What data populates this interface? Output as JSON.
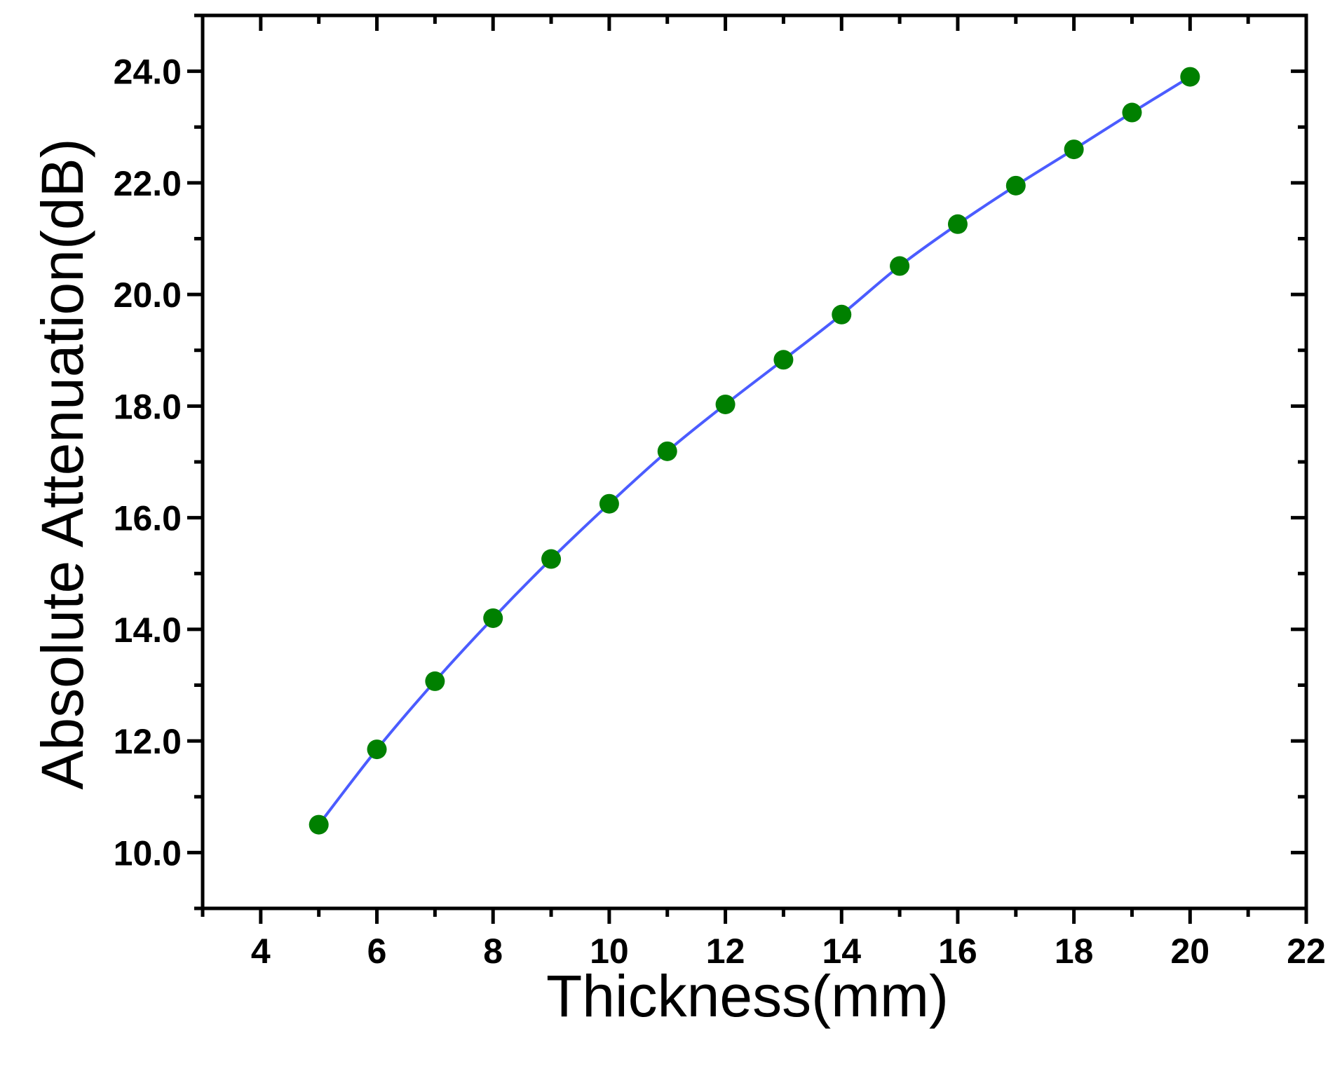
{
  "chart_data": {
    "type": "line",
    "title": "",
    "xlabel": "Thickness(mm)",
    "ylabel": "Absolute Attenuation(dB)",
    "xlim": [
      3,
      22
    ],
    "ylim": [
      9.0,
      25.0
    ],
    "x_ticks": [
      4,
      6,
      8,
      10,
      12,
      14,
      16,
      18,
      20,
      22
    ],
    "x_tick_labels": [
      "4",
      "6",
      "8",
      "10",
      "12",
      "14",
      "16",
      "18",
      "20",
      "22"
    ],
    "y_ticks": [
      10,
      12,
      14,
      16,
      18,
      20,
      22,
      24
    ],
    "y_tick_labels": [
      "10.0",
      "12.0",
      "14.0",
      "16.0",
      "18.0",
      "20.0",
      "22.0",
      "24.0"
    ],
    "x_minor_ticks": [
      3,
      5,
      7,
      9,
      11,
      13,
      15,
      17,
      19,
      21
    ],
    "y_minor_ticks": [
      9,
      11,
      13,
      15,
      17,
      19,
      21,
      23,
      25
    ],
    "grid": false,
    "legend": "none",
    "series": [
      {
        "x": [
          5,
          6,
          7,
          8,
          9,
          10,
          11,
          12,
          13,
          14,
          15,
          16,
          17,
          18,
          19,
          20
        ],
        "y": [
          10.5,
          11.85,
          13.07,
          14.2,
          15.26,
          16.25,
          17.19,
          18.03,
          18.83,
          19.64,
          20.51,
          21.26,
          21.95,
          22.6,
          23.26,
          23.9
        ],
        "marker_color": "#008000",
        "line_color": "#4b5cff"
      }
    ],
    "colors": {
      "axis": "#000000",
      "marker": "#008000",
      "line": "#4b5cff",
      "background": "#ffffff"
    }
  }
}
